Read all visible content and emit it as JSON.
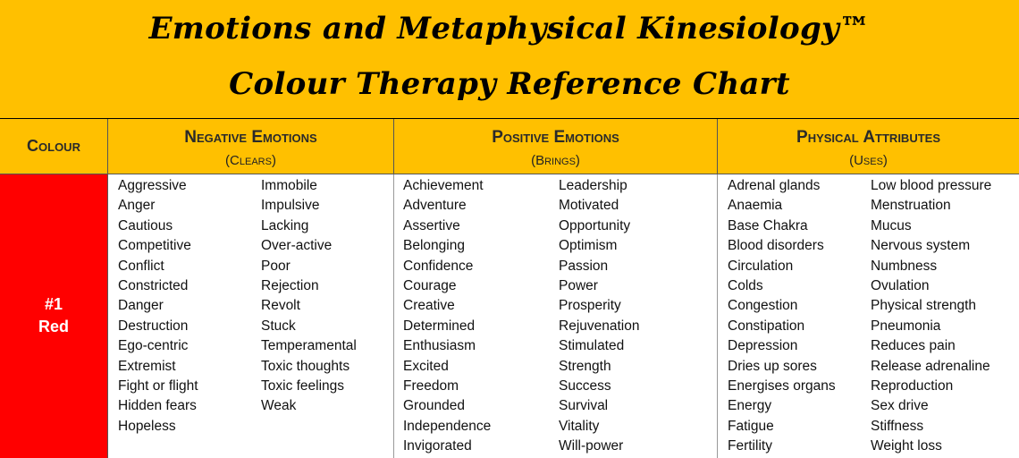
{
  "title": {
    "line1": "Emotions and Metaphysical Kinesiology™",
    "line2": "Colour Therapy Reference Chart"
  },
  "headers": {
    "colour": "Colour",
    "negative": {
      "title": "Negative Emotions",
      "sub": "(Clears)"
    },
    "positive": {
      "title": "Positive Emotions",
      "sub": "(Brings)"
    },
    "physical": {
      "title": "Physical Attributes",
      "sub": "(Uses)"
    }
  },
  "row": {
    "number": "#1",
    "colour_name": "Red",
    "colour_hex": "#FF0000",
    "negative_col1": [
      "Aggressive",
      "Anger",
      "Cautious",
      "Competitive",
      "Conflict",
      "Constricted",
      "Danger",
      "Destruction",
      "Ego-centric",
      "Extremist",
      "Fight or flight",
      "Hidden fears",
      "Hopeless"
    ],
    "negative_col2": [
      "Immobile",
      "Impulsive",
      "Lacking",
      "Over-active",
      "Poor",
      "Rejection",
      "Revolt",
      "Stuck",
      "Temperamental",
      "Toxic thoughts",
      "Toxic feelings",
      "Weak"
    ],
    "positive_col1": [
      "Achievement",
      "Adventure",
      "Assertive",
      "Belonging",
      "Confidence",
      "Courage",
      "Creative",
      "Determined",
      "Enthusiasm",
      "Excited",
      "Freedom",
      "Grounded",
      "Independence",
      "Invigorated"
    ],
    "positive_col2": [
      "Leadership",
      "Motivated",
      "Opportunity",
      "Optimism",
      "Passion",
      "Power",
      "Prosperity",
      "Rejuvenation",
      "Stimulated",
      "Strength",
      "Success",
      "Survival",
      "Vitality",
      "Will-power"
    ],
    "physical_col1": [
      "Adrenal glands",
      "Anaemia",
      "Base Chakra",
      "Blood disorders",
      "Circulation",
      "Colds",
      "Congestion",
      "Constipation",
      "Depression",
      "Dries up sores",
      "Energises organs",
      "Energy",
      "Fatigue",
      "Fertility"
    ],
    "physical_col2": [
      "Low blood pressure",
      "Menstruation",
      "Mucus",
      "Nervous system",
      "Numbness",
      "Ovulation",
      "Physical strength",
      "Pneumonia",
      "Reduces pain",
      "Release adrenaline",
      "Reproduction",
      "Sex drive",
      "Stiffness",
      "Weight loss"
    ]
  },
  "colors": {
    "header_bg": "#FFC000",
    "accent_red": "#FF0000"
  }
}
